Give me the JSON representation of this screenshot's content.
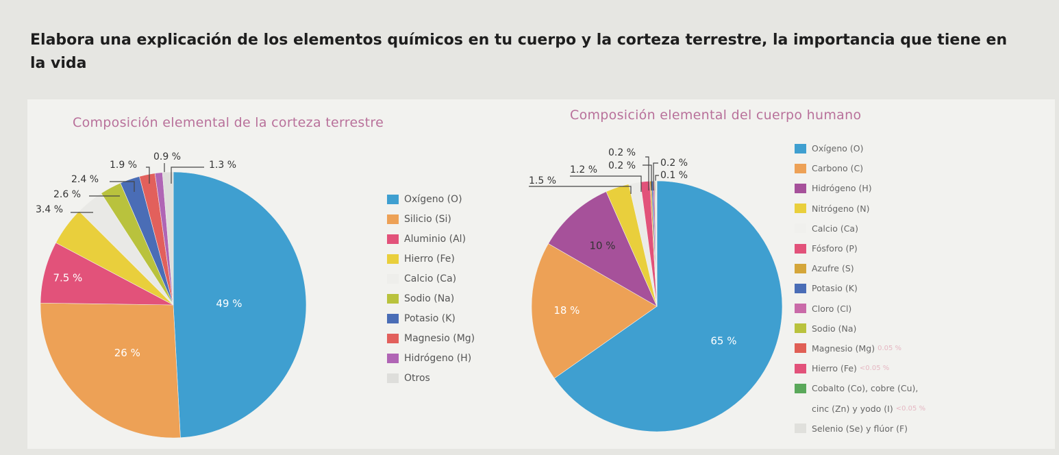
{
  "heading": "Elabora una explicación de los elementos químicos en tu cuerpo y  la corteza terrestre, la importancia que tiene en la vida",
  "chart_data": [
    {
      "type": "pie",
      "title": "Composición elemental de la corteza terrestre",
      "slices": [
        {
          "name": "Oxígeno (O)",
          "value": 49,
          "label": "49 %",
          "color": "#3f9fd0"
        },
        {
          "name": "Silicio (Si)",
          "value": 26,
          "label": "26 %",
          "color": "#eda156"
        },
        {
          "name": "Aluminio (Al)",
          "value": 7.5,
          "label": "7.5 %",
          "color": "#e2527a"
        },
        {
          "name": "Hierro (Fe)",
          "value": 4.7,
          "label": "",
          "color": "#e9cf3c"
        },
        {
          "name": "Calcio (Ca)",
          "value": 3.4,
          "label": "3.4 %",
          "color": "#e9e9e6"
        },
        {
          "name": "Sodio (Na)",
          "value": 2.6,
          "label": "2.6 %",
          "color": "#b9c23d"
        },
        {
          "name": "Potasio (K)",
          "value": 2.4,
          "label": "2.4 %",
          "color": "#4a6db6"
        },
        {
          "name": "Magnesio (Mg)",
          "value": 1.9,
          "label": "1.9 %",
          "color": "#e2605c"
        },
        {
          "name": "Hidrógeno (H)",
          "value": 0.9,
          "label": "0.9 %",
          "color": "#b065b5"
        },
        {
          "name": "Otros",
          "value": 1.3,
          "label": "1.3 %",
          "color": "#dededb"
        }
      ]
    },
    {
      "type": "pie",
      "title": "Composición elemental del cuerpo humano",
      "slices": [
        {
          "name": "Oxígeno (O)",
          "value": 65,
          "label": "65 %",
          "color": "#3f9fd0"
        },
        {
          "name": "Carbono (C)",
          "value": 18,
          "label": "18 %",
          "color": "#eda156"
        },
        {
          "name": "Hidrógeno (H)",
          "value": 10,
          "label": "10 %",
          "color": "#a6519a"
        },
        {
          "name": "Nitrógeno (N)",
          "value": 3,
          "label": "",
          "color": "#e9cf3c"
        },
        {
          "name": "Calcio (Ca)",
          "value": 1.5,
          "label": "1.5 %",
          "color": "#ebebe8"
        },
        {
          "name": "Fósforo (P)",
          "value": 1.2,
          "label": "1.2 %",
          "color": "#e2527a"
        },
        {
          "name": "Azufre (S)",
          "value": 0.2,
          "label": "0.2 %",
          "color": "#d4a63a"
        },
        {
          "name": "Potasio (K)",
          "value": 0.2,
          "label": "0.2 %",
          "color": "#4a6db6"
        },
        {
          "name": "Cloro (Cl)",
          "value": 0.2,
          "label": "0.2 %",
          "color": "#c96aa8"
        },
        {
          "name": "Sodio (Na)",
          "value": 0.1,
          "label": "0.1 %",
          "color": "#b9c23d"
        },
        {
          "name": "Magnesio (Mg)",
          "value": 0.05,
          "label": "",
          "color": "#e05f55"
        },
        {
          "name": "Hierro (Fe)",
          "value": 0.05,
          "label": "",
          "color": "#e2527a"
        },
        {
          "name": "Cobalto (Co), cobre (Cu), cinc (Zn) y yodo (I)",
          "value": 0.05,
          "label": "",
          "color": "#5aa85a"
        },
        {
          "name": "Selenio (Se) y flúor (F)",
          "value": 0.05,
          "label": "",
          "color": "#e0e0dc"
        }
      ]
    }
  ],
  "legend_crust": [
    {
      "label": "Oxígeno (O)",
      "color": "#3f9fd0"
    },
    {
      "label": "Silicio (Si)",
      "color": "#eda156"
    },
    {
      "label": "Aluminio (Al)",
      "color": "#e2527a"
    },
    {
      "label": "Hierro (Fe)",
      "color": "#e9cf3c"
    },
    {
      "label": "Calcio (Ca)",
      "color": "#eeeeeb"
    },
    {
      "label": "Sodio (Na)",
      "color": "#b9c23d"
    },
    {
      "label": "Potasio (K)",
      "color": "#4a6db6"
    },
    {
      "label": "Magnesio (Mg)",
      "color": "#e2605c"
    },
    {
      "label": "Hidrógeno (H)",
      "color": "#b065b5"
    },
    {
      "label": "Otros",
      "color": "#dededb"
    }
  ],
  "legend_body": [
    {
      "label": "Oxígeno (O)",
      "color": "#3f9fd0"
    },
    {
      "label": "Carbono (C)",
      "color": "#eda156"
    },
    {
      "label": "Hidrógeno (H)",
      "color": "#a6519a"
    },
    {
      "label": "Nitrógeno (N)",
      "color": "#e9cf3c"
    },
    {
      "label": "Calcio (Ca)",
      "color": "#f0f0ed"
    },
    {
      "label": "Fósforo (P)",
      "color": "#e2527a"
    },
    {
      "label": "Azufre (S)",
      "color": "#d4a63a"
    },
    {
      "label": "Potasio (K)",
      "color": "#4a6db6"
    },
    {
      "label": "Cloro (Cl)",
      "color": "#c96aa8"
    },
    {
      "label": "Sodio (Na)",
      "color": "#b9c23d"
    },
    {
      "label": "Magnesio (Mg)",
      "color": "#e05f55",
      "extra": "0.05 %"
    },
    {
      "label": "Hierro (Fe)",
      "color": "#e2527a",
      "extra": "<0.05 %"
    },
    {
      "label": "Cobalto (Co), cobre (Cu),",
      "color": "#5aa85a"
    },
    {
      "label": "cinc (Zn) y yodo (I)",
      "color": "",
      "extra": "<0.05 %"
    },
    {
      "label": "Selenio (Se) y flúor (F)",
      "color": "#e0e0dc"
    }
  ]
}
